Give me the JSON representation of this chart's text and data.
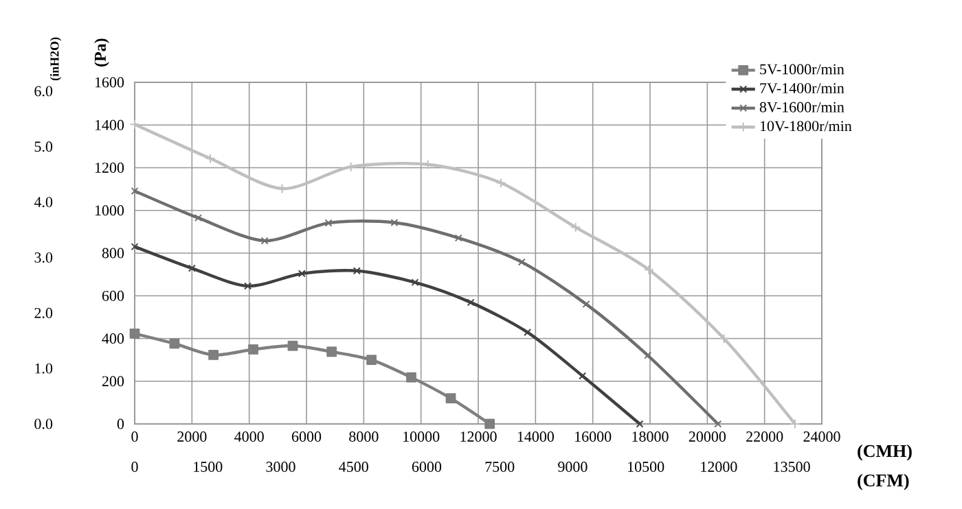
{
  "chart_data": {
    "type": "line",
    "xlabel": "(CMH)",
    "x2label": "(CFM)",
    "ylabel": "(Pa)",
    "y2label": "(inH2O)",
    "xlim": [
      0,
      24000
    ],
    "xticks": [
      0,
      2000,
      4000,
      6000,
      8000,
      10000,
      12000,
      14000,
      16000,
      18000,
      20000,
      22000,
      24000
    ],
    "x2lim": [
      0,
      14120
    ],
    "x2ticks": [
      0,
      1500,
      3000,
      4500,
      6000,
      7500,
      9000,
      10500,
      12000,
      13500
    ],
    "ylim": [
      0,
      1600
    ],
    "yticks": [
      0,
      200,
      400,
      600,
      800,
      1000,
      1200,
      1400,
      1600
    ],
    "y2lim": [
      0,
      6.16
    ],
    "y2ticks": [
      {
        "value": 0,
        "label": "0.0"
      },
      {
        "value": 1,
        "label": "1.0"
      },
      {
        "value": 2,
        "label": "2.0"
      },
      {
        "value": 3,
        "label": "3.0"
      },
      {
        "value": 4,
        "label": "4.0"
      },
      {
        "value": 5,
        "label": "5.0"
      },
      {
        "value": 6,
        "label": "6.0"
      }
    ],
    "grid": true,
    "legend": "top right",
    "series": [
      {
        "name": "5V-1000r/min",
        "color": "#7f7f7f",
        "marker": "square",
        "x": [
          0,
          1390,
          2750,
          4140,
          5520,
          6880,
          8270,
          9660,
          11040,
          12400
        ],
        "values": [
          423,
          376,
          323,
          349,
          366,
          338,
          300,
          218,
          120,
          0
        ]
      },
      {
        "name": "7V-1400r/min",
        "color": "#404040",
        "marker": "cross",
        "x": [
          0,
          2000,
          3950,
          5840,
          7760,
          9790,
          11740,
          13720,
          15640,
          17640
        ],
        "values": [
          830,
          729,
          646,
          704,
          717,
          663,
          569,
          429,
          225,
          0
        ]
      },
      {
        "name": "8V-1600r/min",
        "color": "#6e6e6e",
        "marker": "cross",
        "x": [
          0,
          2220,
          4540,
          6770,
          9070,
          11310,
          13520,
          15770,
          17920,
          20370
        ],
        "values": [
          1091,
          965,
          858,
          941,
          943,
          871,
          758,
          561,
          321,
          0
        ]
      },
      {
        "name": "10V-1800r/min",
        "color": "#bfbfbf",
        "marker": "plus",
        "x": [
          0,
          2640,
          5150,
          7550,
          10240,
          12790,
          15400,
          17960,
          20580,
          23060
        ],
        "values": [
          1403,
          1243,
          1102,
          1204,
          1215,
          1129,
          921,
          722,
          400,
          0
        ]
      }
    ]
  }
}
